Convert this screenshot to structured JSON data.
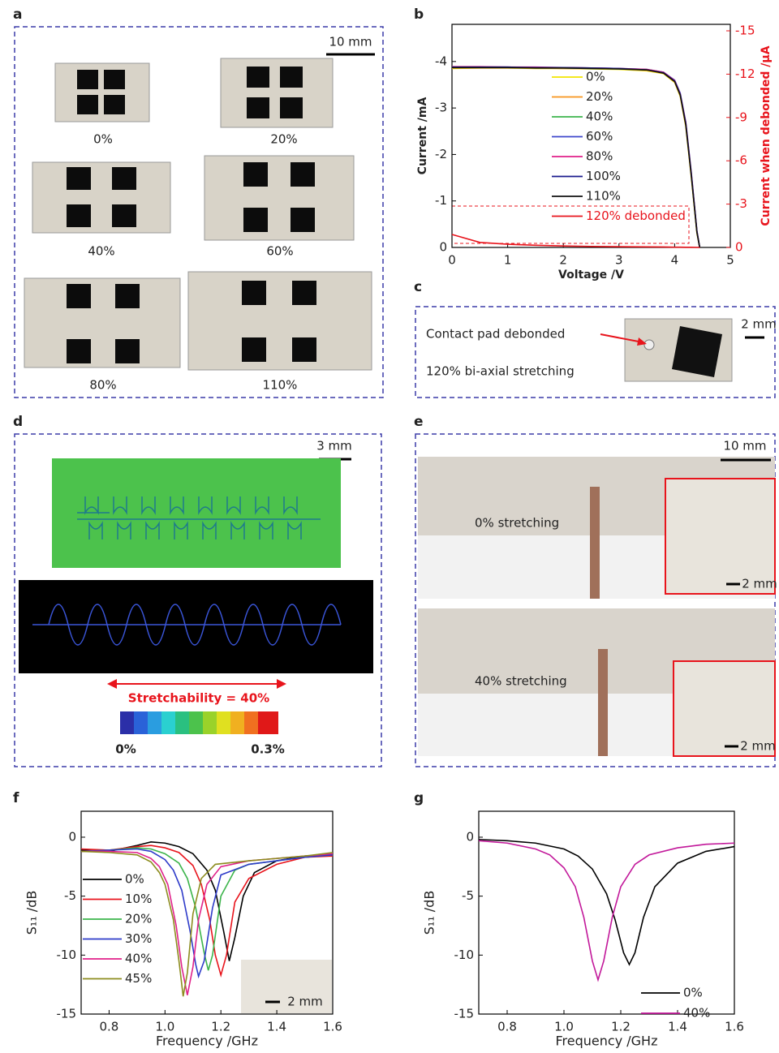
{
  "panel_labels": [
    "a",
    "b",
    "c",
    "d",
    "e",
    "f",
    "g"
  ],
  "panel_a": {
    "scale_bar": "10 mm",
    "captions": [
      "0%",
      "20%",
      "40%",
      "60%",
      "80%",
      "110%"
    ]
  },
  "panel_c": {
    "annotation": "Contact pad debonded",
    "caption": "120% bi-axial stretching",
    "scale_bar": "2 mm"
  },
  "panel_d": {
    "scale_bar": "3 mm",
    "stretchability": "Stretchability = 40%",
    "colorbar_min": "0%",
    "colorbar_max": "0.3%"
  },
  "panel_e": {
    "scale_bar": "10 mm",
    "top_caption": "0% stretching",
    "top_inset_scale": "2 mm",
    "bottom_caption": "40% stretching",
    "bottom_inset_scale": "2 mm"
  },
  "panel_f_inset_scale": "2 mm",
  "chart_data": [
    {
      "type": "line",
      "xlabel": "Voltage /V",
      "ylabel": "Current /mA",
      "y2label": "Current when debonded /μA",
      "x": [
        0,
        0.5,
        1,
        1.5,
        2,
        2.5,
        3,
        3.5,
        3.8,
        4.0,
        4.1,
        4.2,
        4.3,
        4.4,
        4.45
      ],
      "xlim": [
        0,
        5
      ],
      "xticks": [
        0,
        1,
        2,
        3,
        4,
        5
      ],
      "ylim": [
        0,
        -4.8
      ],
      "yticks": [
        0,
        -1,
        -2,
        -3,
        -4
      ],
      "y2lim": [
        0,
        -15.45
      ],
      "y2ticks": [
        0,
        -3,
        -6,
        -9,
        -12,
        -15
      ],
      "y2color": "#e8141c",
      "series": [
        {
          "name": "0%",
          "color": "#f2e600",
          "values": [
            -3.85,
            -3.86,
            -3.86,
            -3.85,
            -3.85,
            -3.84,
            -3.83,
            -3.8,
            -3.74,
            -3.55,
            -3.25,
            -2.6,
            -1.5,
            -0.3,
            0
          ]
        },
        {
          "name": "20%",
          "color": "#f7941d",
          "values": [
            -3.86,
            -3.86,
            -3.86,
            -3.86,
            -3.85,
            -3.85,
            -3.84,
            -3.81,
            -3.75,
            -3.56,
            -3.27,
            -2.62,
            -1.52,
            -0.32,
            0
          ]
        },
        {
          "name": "40%",
          "color": "#3cb44b",
          "values": [
            -3.87,
            -3.87,
            -3.87,
            -3.86,
            -3.86,
            -3.85,
            -3.84,
            -3.82,
            -3.76,
            -3.58,
            -3.3,
            -2.66,
            -1.55,
            -0.34,
            0
          ]
        },
        {
          "name": "60%",
          "color": "#3f48cc",
          "values": [
            -3.88,
            -3.88,
            -3.88,
            -3.87,
            -3.87,
            -3.86,
            -3.85,
            -3.83,
            -3.77,
            -3.6,
            -3.32,
            -2.7,
            -1.6,
            -0.36,
            0
          ]
        },
        {
          "name": "80%",
          "color": "#e0218a",
          "values": [
            -3.89,
            -3.89,
            -3.88,
            -3.88,
            -3.87,
            -3.86,
            -3.85,
            -3.83,
            -3.77,
            -3.59,
            -3.3,
            -2.68,
            -1.58,
            -0.35,
            0
          ]
        },
        {
          "name": "100%",
          "color": "#1a1a8c",
          "values": [
            -3.88,
            -3.88,
            -3.88,
            -3.87,
            -3.87,
            -3.86,
            -3.85,
            -3.82,
            -3.76,
            -3.58,
            -3.29,
            -2.66,
            -1.56,
            -0.34,
            0
          ]
        },
        {
          "name": "110%",
          "color": "#111111",
          "values": [
            -3.87,
            -3.87,
            -3.87,
            -3.86,
            -3.86,
            -3.85,
            -3.84,
            -3.82,
            -3.75,
            -3.57,
            -3.28,
            -2.64,
            -1.54,
            -0.33,
            0
          ]
        },
        {
          "name": "120% debonded",
          "color": "#e8141c",
          "axis": "y2",
          "values": [
            -0.9,
            -0.35,
            -0.22,
            -0.15,
            -0.1,
            -0.07,
            -0.05,
            -0.04,
            -0.03,
            -0.02,
            -0.02,
            -0.01,
            -0.01,
            0,
            0
          ]
        }
      ]
    },
    {
      "type": "line",
      "xlabel": "Frequency /GHz",
      "ylabel": "S₁₁ /dB",
      "xlim": [
        0.7,
        1.6
      ],
      "xticks": [
        0.8,
        {
          "value": 1.0,
          "label": "1.0"
        },
        1.2,
        1.4,
        1.6
      ],
      "ylim": [
        -15,
        2.2
      ],
      "yticks": [
        0,
        -5,
        -10,
        -15
      ],
      "series": [
        {
          "name": "0%",
          "color": "#000000",
          "x": [
            0.7,
            0.8,
            0.9,
            0.95,
            1.0,
            1.05,
            1.1,
            1.15,
            1.18,
            1.21,
            1.23,
            1.25,
            1.28,
            1.32,
            1.4,
            1.5,
            1.6
          ],
          "values": [
            -1.1,
            -1.2,
            -0.7,
            -0.4,
            -0.5,
            -0.8,
            -1.4,
            -2.8,
            -4.5,
            -8,
            -10.5,
            -8.5,
            -5,
            -3,
            -2,
            -1.6,
            -1.5
          ]
        },
        {
          "name": "10%",
          "color": "#e8141c",
          "x": [
            0.7,
            0.8,
            0.9,
            0.95,
            1.0,
            1.05,
            1.1,
            1.13,
            1.16,
            1.18,
            1.2,
            1.22,
            1.25,
            1.3,
            1.4,
            1.5,
            1.6
          ],
          "values": [
            -1.0,
            -1.1,
            -0.8,
            -0.7,
            -0.9,
            -1.3,
            -2.4,
            -4,
            -7,
            -10,
            -11.7,
            -10,
            -5.5,
            -3.5,
            -2.3,
            -1.7,
            -1.6
          ]
        },
        {
          "name": "20%",
          "color": "#3cb44b",
          "x": [
            0.7,
            0.8,
            0.9,
            0.95,
            1.0,
            1.05,
            1.08,
            1.11,
            1.14,
            1.155,
            1.17,
            1.2,
            1.25,
            1.3,
            1.4,
            1.5,
            1.6
          ],
          "values": [
            -1.2,
            -1.1,
            -0.9,
            -1.0,
            -1.4,
            -2.2,
            -3.5,
            -6,
            -9.8,
            -11.3,
            -10,
            -5,
            -2.8,
            -2.3,
            -2,
            -1.7,
            -1.5
          ]
        },
        {
          "name": "30%",
          "color": "#2e3bc9",
          "x": [
            0.7,
            0.8,
            0.9,
            0.95,
            1.0,
            1.03,
            1.06,
            1.09,
            1.11,
            1.12,
            1.14,
            1.17,
            1.2,
            1.3,
            1.4,
            1.5,
            1.6
          ],
          "values": [
            -1.2,
            -1.1,
            -1.0,
            -1.2,
            -1.9,
            -2.8,
            -4.5,
            -8,
            -10.8,
            -11.8,
            -10.5,
            -6,
            -3.2,
            -2.3,
            -2,
            -1.7,
            -1.5
          ]
        },
        {
          "name": "40%",
          "color": "#e0218a",
          "x": [
            0.7,
            0.8,
            0.9,
            0.95,
            0.98,
            1.01,
            1.04,
            1.06,
            1.08,
            1.1,
            1.12,
            1.15,
            1.2,
            1.3,
            1.4,
            1.5,
            1.6
          ],
          "values": [
            -1.2,
            -1.2,
            -1.3,
            -1.8,
            -2.5,
            -4,
            -7.5,
            -11,
            -13.4,
            -11,
            -7,
            -4,
            -2.5,
            -2,
            -1.8,
            -1.6,
            -1.4
          ]
        },
        {
          "name": "45%",
          "color": "#8c8c1e",
          "x": [
            0.7,
            0.8,
            0.9,
            0.95,
            0.98,
            1.0,
            1.03,
            1.05,
            1.065,
            1.08,
            1.1,
            1.13,
            1.18,
            1.3,
            1.4,
            1.5,
            1.6
          ],
          "values": [
            -1.2,
            -1.3,
            -1.5,
            -2.1,
            -3,
            -4,
            -7,
            -10.5,
            -13.5,
            -11.5,
            -6.5,
            -3.5,
            -2.3,
            -2,
            -1.8,
            -1.6,
            -1.3
          ]
        }
      ]
    },
    {
      "type": "line",
      "xlabel": "Frequency /GHz",
      "ylabel": "S₁₁ /dB",
      "xlim": [
        0.7,
        1.6
      ],
      "xticks": [
        0.8,
        {
          "value": 1.0,
          "label": "1.0"
        },
        1.2,
        1.4,
        1.6
      ],
      "ylim": [
        -15,
        2.2
      ],
      "yticks": [
        0,
        -5,
        -10,
        -15
      ],
      "series": [
        {
          "name": "0%",
          "color": "#000000",
          "x": [
            0.7,
            0.8,
            0.9,
            1.0,
            1.05,
            1.1,
            1.15,
            1.18,
            1.21,
            1.23,
            1.25,
            1.28,
            1.32,
            1.4,
            1.5,
            1.6
          ],
          "values": [
            -0.2,
            -0.3,
            -0.5,
            -1.0,
            -1.6,
            -2.7,
            -4.8,
            -7,
            -9.8,
            -10.8,
            -9.8,
            -6.8,
            -4.2,
            -2.2,
            -1.2,
            -0.8
          ]
        },
        {
          "name": "40%",
          "color": "#c2189a",
          "x": [
            0.7,
            0.8,
            0.9,
            0.95,
            1.0,
            1.04,
            1.07,
            1.1,
            1.12,
            1.14,
            1.17,
            1.2,
            1.25,
            1.3,
            1.4,
            1.5,
            1.6
          ],
          "values": [
            -0.3,
            -0.5,
            -1,
            -1.5,
            -2.6,
            -4.2,
            -6.8,
            -10.5,
            -12.1,
            -10.5,
            -6.8,
            -4.2,
            -2.3,
            -1.5,
            -0.9,
            -0.6,
            -0.5
          ]
        }
      ]
    }
  ]
}
